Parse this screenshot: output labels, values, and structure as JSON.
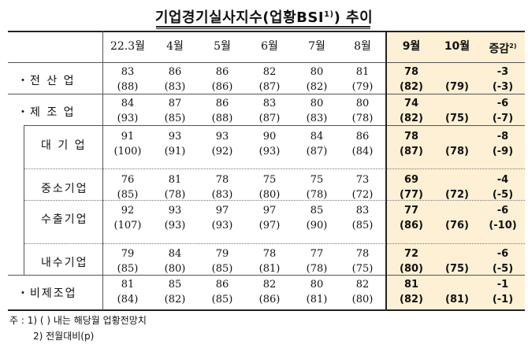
{
  "title": "기업경기실사지수(업황BSI",
  "title_sup": "1)",
  "title_end": ") 추이",
  "columns": [
    "22.3월",
    "4월",
    "5월",
    "6월",
    "7월",
    "8월",
    "9월",
    "10월",
    "증감"
  ],
  "change_sup": "2)",
  "rows": [
    {
      "label": "・전 산 업",
      "values": [
        "83",
        "86",
        "86",
        "82",
        "80",
        "81",
        "78",
        "",
        "-3"
      ],
      "prev": [
        "(88)",
        "(83)",
        "(86)",
        "(87)",
        "(82)",
        "(79)",
        "(82)",
        "(79)",
        "(-3)"
      ]
    },
    {
      "label": "・제 조 업",
      "values": [
        "84",
        "87",
        "86",
        "83",
        "80",
        "80",
        "74",
        "",
        "-6"
      ],
      "prev": [
        "(93)",
        "(85)",
        "(88)",
        "(87)",
        "(83)",
        "(78)",
        "(82)",
        "(75)",
        "(-7)"
      ]
    },
    {
      "label": "대 기 업",
      "values": [
        "91",
        "93",
        "93",
        "90",
        "84",
        "86",
        "78",
        "",
        "-8"
      ],
      "prev": [
        "(100)",
        "(91)",
        "(92)",
        "(93)",
        "(87)",
        "(84)",
        "(87)",
        "(78)",
        "(-9)"
      ]
    },
    {
      "label": "중소기업",
      "values": [
        "76",
        "81",
        "78",
        "75",
        "75",
        "73",
        "69",
        "",
        "-4"
      ],
      "prev": [
        "(85)",
        "(78)",
        "(83)",
        "(80)",
        "(78)",
        "(72)",
        "(77)",
        "(72)",
        "(-5)"
      ]
    },
    {
      "label": "수출기업",
      "values": [
        "92",
        "93",
        "97",
        "97",
        "85",
        "83",
        "77",
        "",
        "-6"
      ],
      "prev": [
        "(107)",
        "(93)",
        "(93)",
        "(97)",
        "(90)",
        "(85)",
        "(86)",
        "(76)",
        "(-10)"
      ]
    },
    {
      "label": "내수기업",
      "values": [
        "79",
        "84",
        "79",
        "78",
        "77",
        "78",
        "72",
        "",
        "-6"
      ],
      "prev": [
        "(85)",
        "(80)",
        "(85)",
        "(81)",
        "(78)",
        "(75)",
        "(80)",
        "(75)",
        "(-5)"
      ]
    },
    {
      "label": "・비제조업",
      "values": [
        "81",
        "85",
        "86",
        "82",
        "80",
        "82",
        "81",
        "",
        "-1"
      ],
      "prev": [
        "(84)",
        "(82)",
        "(85)",
        "(86)",
        "(81)",
        "(80)",
        "(82)",
        "(81)",
        "(-1)"
      ]
    }
  ],
  "notes": {
    "line1": "주 : 1) (   ) 내는 해당월 업황전망치",
    "line2": "2) 전월대비(p)"
  },
  "colors": {
    "highlight": "#fdf0d5"
  }
}
